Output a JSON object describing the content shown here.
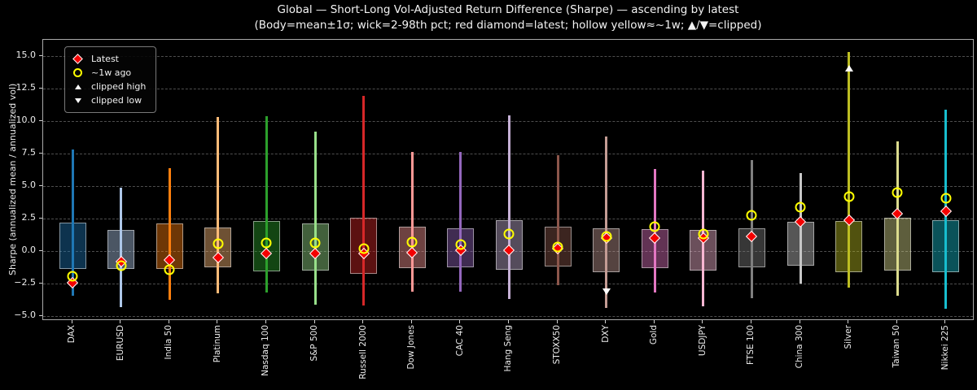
{
  "chart_data": {
    "type": "box-wick candlestick-style distribution chart (body=mean±1σ, wick=2–98th percentile)",
    "title": "Global — Short-Long Vol-Adjusted Return Difference (Sharpe) — ascending by latest",
    "subtitle": "(Body=mean±1σ; wick=2-98th pct; red diamond=latest; hollow yellow≈~1w; ▲/▼=clipped)",
    "ylabel": "Sharpe (annualized mean / annualized vol)",
    "yticks": [
      15.0,
      12.5,
      10.0,
      7.5,
      5.0,
      2.5,
      0.0,
      -2.5,
      -5.0
    ],
    "ylim": [
      -5.4,
      16.25
    ],
    "grid": "horizontal dashed gridlines on black background",
    "legend_position": "upper left",
    "legend": [
      "Latest",
      "~1w ago",
      "clipped high",
      "clipped low"
    ],
    "marker_colors": {
      "latest": "#f40000",
      "week_ago": "#ffff00",
      "clipped": "#ffffff"
    },
    "series": [
      {
        "name": "DAX",
        "color": "#1f77b4",
        "body_top": 2.2,
        "body_bottom": -1.4,
        "wick_high": 7.8,
        "wick_low": -3.45,
        "latest": -2.42,
        "week_ago": -1.92,
        "clipped_high": null,
        "clipped_low": null
      },
      {
        "name": "EURUSD",
        "color": "#aec7e8",
        "body_top": 1.65,
        "body_bottom": -1.4,
        "wick_high": 4.9,
        "wick_low": -4.3,
        "latest": -0.8,
        "week_ago": -1.1,
        "clipped_high": null,
        "clipped_low": null
      },
      {
        "name": "India 50",
        "color": "#ff7f0e",
        "body_top": 2.1,
        "body_bottom": -1.4,
        "wick_high": 6.4,
        "wick_low": -3.75,
        "latest": -0.71,
        "week_ago": -1.44,
        "clipped_high": null,
        "clipped_low": null
      },
      {
        "name": "Platinum",
        "color": "#ffbb78",
        "body_top": 1.8,
        "body_bottom": -1.25,
        "wick_high": 10.3,
        "wick_low": -3.25,
        "latest": -0.5,
        "week_ago": 0.54,
        "clipped_high": null,
        "clipped_low": null
      },
      {
        "name": "Nasdaq 100",
        "color": "#2ca02c",
        "body_top": 2.3,
        "body_bottom": -1.55,
        "wick_high": 10.4,
        "wick_low": -3.2,
        "latest": -0.2,
        "week_ago": 0.6,
        "clipped_high": null,
        "clipped_low": null
      },
      {
        "name": "S&P 500",
        "color": "#98df8a",
        "body_top": 2.15,
        "body_bottom": -1.5,
        "wick_high": 9.2,
        "wick_low": -4.1,
        "latest": -0.18,
        "week_ago": 0.6,
        "clipped_high": null,
        "clipped_low": null
      },
      {
        "name": "Russell 2000",
        "color": "#d62728",
        "body_top": 2.55,
        "body_bottom": -1.75,
        "wick_high": 11.95,
        "wick_low": -4.2,
        "latest": -0.16,
        "week_ago": 0.19,
        "clipped_high": null,
        "clipped_low": null
      },
      {
        "name": "Dow Jones",
        "color": "#ff9896",
        "body_top": 1.9,
        "body_bottom": -1.3,
        "wick_high": 7.6,
        "wick_low": -3.1,
        "latest": -0.13,
        "week_ago": 0.71,
        "clipped_high": null,
        "clipped_low": null
      },
      {
        "name": "CAC 40",
        "color": "#9467bd",
        "body_top": 1.75,
        "body_bottom": -1.25,
        "wick_high": 7.6,
        "wick_low": -3.1,
        "latest": 0.04,
        "week_ago": 0.5,
        "clipped_high": null,
        "clipped_low": null
      },
      {
        "name": "Hang Seng",
        "color": "#c5b0d5",
        "body_top": 2.4,
        "body_bottom": -1.45,
        "wick_high": 10.45,
        "wick_low": -3.7,
        "latest": 0.08,
        "week_ago": 1.3,
        "clipped_high": null,
        "clipped_low": null
      },
      {
        "name": "STOXX50",
        "color": "#8c564b",
        "body_top": 1.9,
        "body_bottom": -1.2,
        "wick_high": 7.4,
        "wick_low": -2.6,
        "latest": 0.22,
        "week_ago": 0.3,
        "clipped_high": null,
        "clipped_low": null
      },
      {
        "name": "DXY",
        "color": "#c49c94",
        "body_top": 1.75,
        "body_bottom": -1.6,
        "wick_high": 8.8,
        "wick_low": -4.4,
        "latest": 0.98,
        "week_ago": 1.1,
        "clipped_high": null,
        "clipped_low": -3.1
      },
      {
        "name": "Gold",
        "color": "#e377c2",
        "body_top": 1.7,
        "body_bottom": -1.3,
        "wick_high": 6.3,
        "wick_low": -3.2,
        "latest": 1.0,
        "week_ago": 1.9,
        "clipped_high": null,
        "clipped_low": null
      },
      {
        "name": "USDJPY",
        "color": "#f7b6d2",
        "body_top": 1.65,
        "body_bottom": -1.5,
        "wick_high": 6.2,
        "wick_low": -4.25,
        "latest": 1.02,
        "week_ago": 1.3,
        "clipped_high": null,
        "clipped_low": null
      },
      {
        "name": "FTSE 100",
        "color": "#7f7f7f",
        "body_top": 1.75,
        "body_bottom": -1.25,
        "wick_high": 7.0,
        "wick_low": -3.6,
        "latest": 1.13,
        "week_ago": 2.75,
        "clipped_high": null,
        "clipped_low": null
      },
      {
        "name": "China 300",
        "color": "#c7c7c7",
        "body_top": 2.25,
        "body_bottom": -1.15,
        "wick_high": 6.0,
        "wick_low": -2.5,
        "latest": 2.25,
        "week_ago": 3.4,
        "clipped_high": null,
        "clipped_low": null
      },
      {
        "name": "Silver",
        "color": "#bcbd22",
        "body_top": 2.3,
        "body_bottom": -1.6,
        "wick_high": 15.3,
        "wick_low": -2.8,
        "latest": 2.35,
        "week_ago": 4.2,
        "clipped_high": 14.05,
        "clipped_low": null
      },
      {
        "name": "Taiwan 50",
        "color": "#dbdb8d",
        "body_top": 2.55,
        "body_bottom": -1.5,
        "wick_high": 8.45,
        "wick_low": -3.45,
        "latest": 2.85,
        "week_ago": 4.5,
        "clipped_high": null,
        "clipped_low": null
      },
      {
        "name": "Nikkei 225",
        "color": "#17becf",
        "body_top": 2.4,
        "body_bottom": -1.65,
        "wick_high": 10.9,
        "wick_low": -4.45,
        "latest": 3.05,
        "week_ago": 4.05,
        "clipped_high": null,
        "clipped_low": null
      }
    ]
  }
}
